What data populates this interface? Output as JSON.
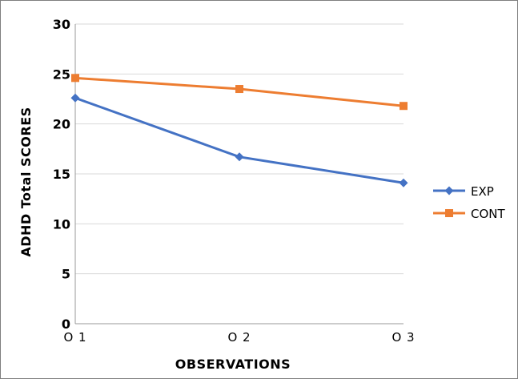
{
  "chart_data": {
    "type": "line",
    "categories": [
      "O 1",
      "O 2",
      "O 3"
    ],
    "series": [
      {
        "name": "EXP",
        "values": [
          22.6,
          16.7,
          14.1
        ],
        "color": "#4472c4",
        "marker": "diamond"
      },
      {
        "name": "CONT",
        "values": [
          24.6,
          23.5,
          21.8
        ],
        "color": "#ed7d31",
        "marker": "square"
      }
    ],
    "title": "",
    "xlabel": "OBSERVATIONS",
    "ylabel": "ADHD Total SCORES",
    "ylim": [
      0,
      30
    ],
    "yticks": [
      0,
      5,
      10,
      15,
      20,
      25,
      30
    ],
    "grid": true,
    "legend": "right"
  }
}
